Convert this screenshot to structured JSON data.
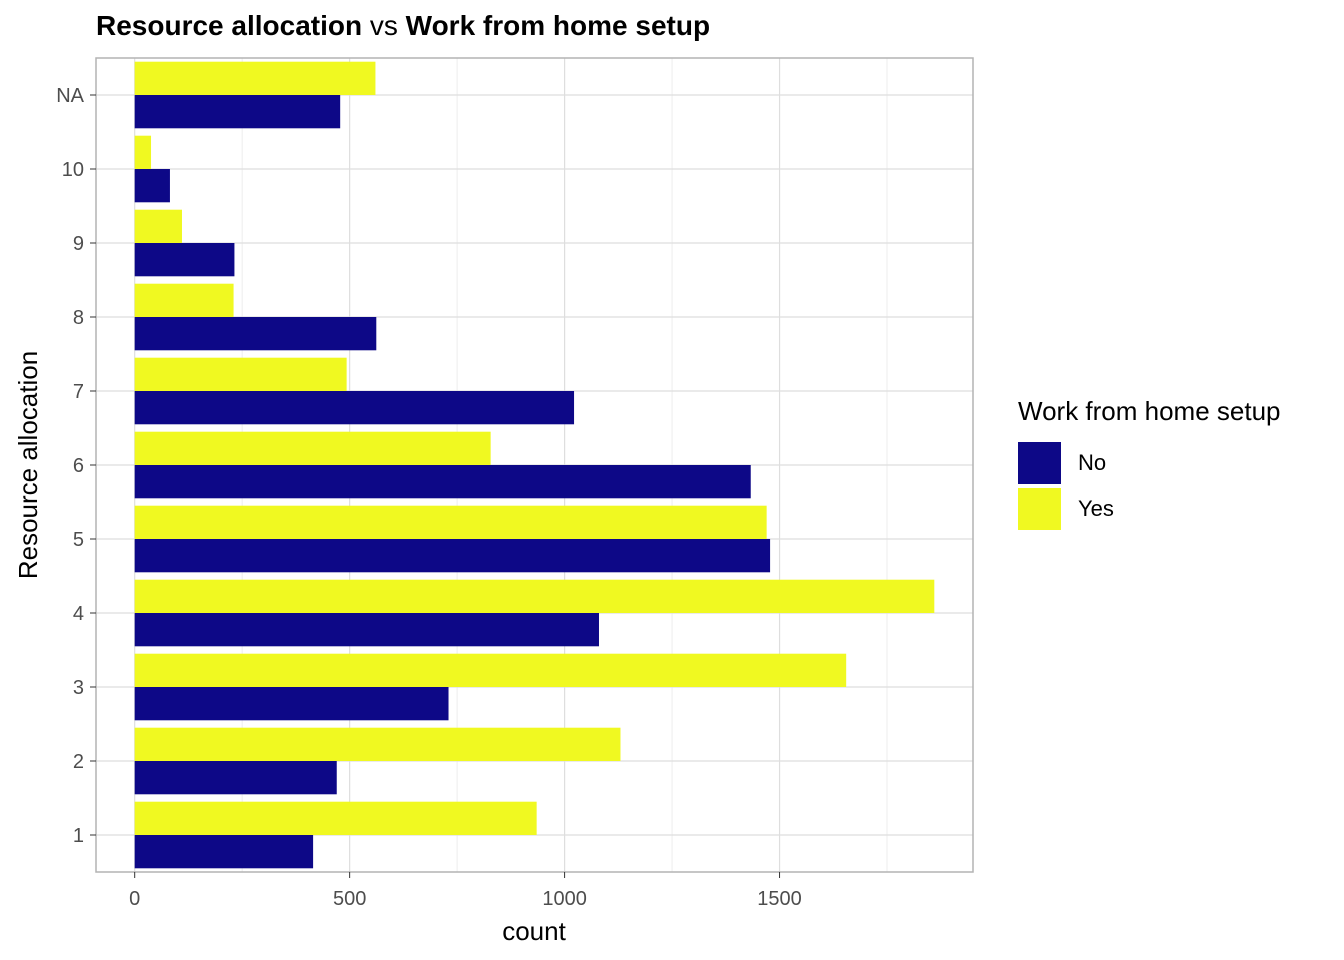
{
  "title": {
    "part1": "Resource allocation",
    "connector": "vs",
    "part2": "Work from home setup"
  },
  "chart_data": {
    "type": "bar",
    "orientation": "horizontal",
    "categories": [
      "1",
      "2",
      "3",
      "4",
      "5",
      "6",
      "7",
      "8",
      "9",
      "10",
      "NA"
    ],
    "series": [
      {
        "name": "No",
        "color": "#0d0887",
        "values": [
          415,
          470,
          730,
          1080,
          1478,
          1433,
          1022,
          562,
          232,
          82,
          478
        ]
      },
      {
        "name": "Yes",
        "color": "#f0f921",
        "values": [
          935,
          1130,
          1655,
          1860,
          1470,
          828,
          493,
          230,
          110,
          38,
          560
        ]
      }
    ],
    "xlabel": "count",
    "ylabel": "Resource allocation",
    "xlim": [
      -90,
      1950
    ],
    "xticks": [
      0,
      500,
      1000,
      1500
    ],
    "grid": true,
    "legend": {
      "title": "Work from home setup",
      "position": "right"
    }
  }
}
